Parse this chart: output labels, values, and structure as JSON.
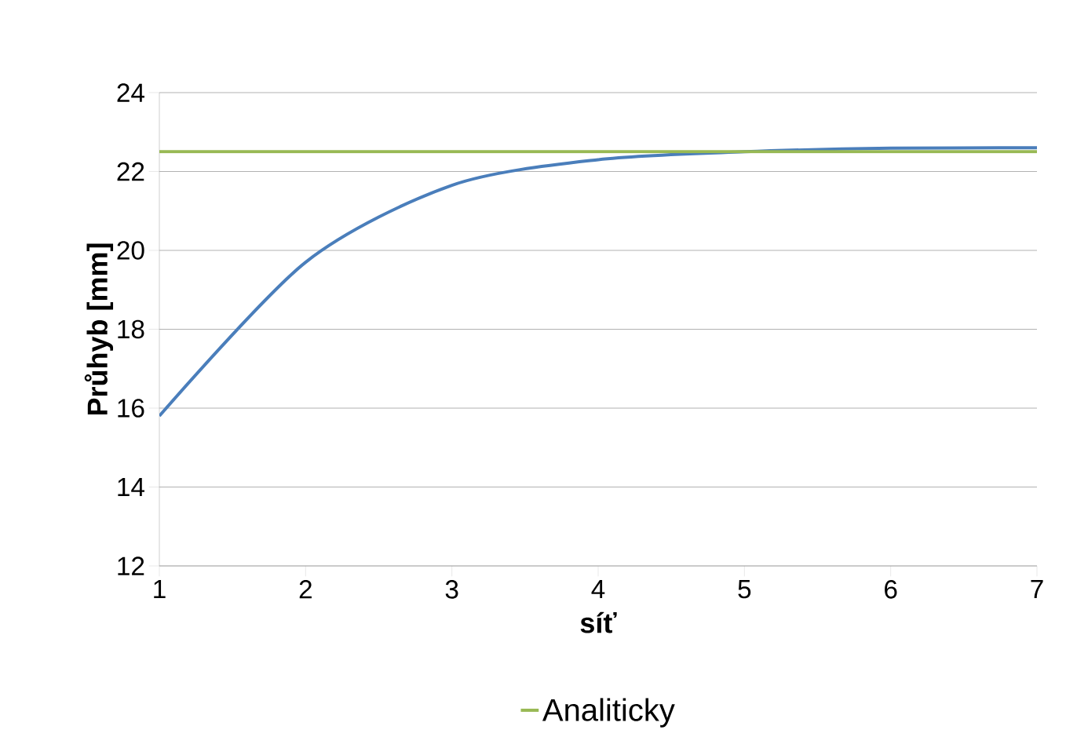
{
  "chart_data": {
    "type": "line",
    "xlabel": "síť",
    "ylabel": "Průhyb [mm]",
    "x": [
      1,
      2,
      3,
      4,
      5,
      6,
      7
    ],
    "series": [
      {
        "color": "#4a7ebb",
        "values": [
          15.8,
          19.7,
          21.65,
          22.3,
          22.5,
          22.59,
          22.6
        ]
      },
      {
        "name": "Analiticky",
        "color": "#98b954",
        "values": [
          22.5,
          22.5,
          22.5,
          22.5,
          22.5,
          22.5,
          22.5
        ]
      }
    ],
    "xlim": [
      1,
      7
    ],
    "xticks": [
      1,
      2,
      3,
      4,
      5,
      6,
      7
    ],
    "ylim": [
      12,
      24
    ],
    "yticks": [
      12,
      14,
      16,
      18,
      20,
      22,
      24
    ],
    "grid": "y",
    "legend": "bottom",
    "marker": "none",
    "line_style": "solid"
  }
}
